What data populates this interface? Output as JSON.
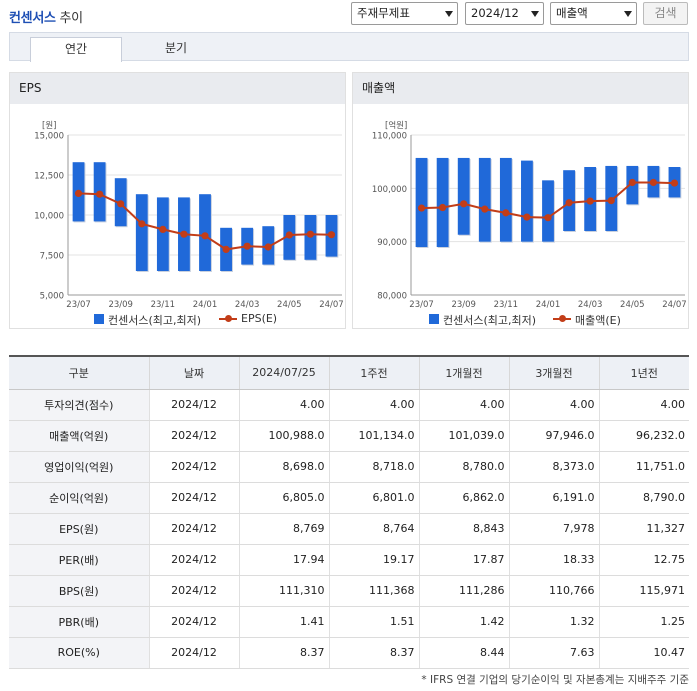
{
  "header": {
    "brand": "컨센서스",
    "title_suffix": "추이",
    "select_type": "주재무제표",
    "select_period": "2024/12",
    "select_metric": "매출액",
    "search_label": "검색"
  },
  "tabs": [
    {
      "label": "연간",
      "active": true
    },
    {
      "label": "분기",
      "active": false
    }
  ],
  "charts": [
    {
      "chart_data": {
        "type": "bar",
        "title": "EPS",
        "unit_label": "[원]",
        "categories": [
          "23/07",
          "23/08",
          "23/09",
          "23/10",
          "23/11",
          "23/12",
          "24/01",
          "24/02",
          "24/03",
          "24/04",
          "24/05",
          "24/06",
          "24/07"
        ],
        "xtick_labels": [
          "23/07",
          "23/09",
          "23/11",
          "24/01",
          "24/03",
          "24/05",
          "24/07"
        ],
        "range_high": [
          13300,
          13300,
          12300,
          11300,
          11100,
          11100,
          11300,
          9200,
          9200,
          9300,
          10000,
          10000,
          10000
        ],
        "range_low": [
          9600,
          9600,
          9300,
          6500,
          6500,
          6500,
          6500,
          6500,
          6900,
          6900,
          7200,
          7200,
          7400
        ],
        "line_values": [
          11350,
          11300,
          10700,
          9450,
          9100,
          8800,
          8700,
          7850,
          8050,
          8000,
          8750,
          8800,
          8769
        ],
        "ylim": [
          5000,
          15000
        ],
        "yticks": [
          5000,
          7500,
          10000,
          12500,
          15000
        ],
        "ytick_labels": [
          "5,000",
          "7,500",
          "10,000",
          "12,500",
          "15,000"
        ],
        "legend_bar": "컨센서스(최고,최저)",
        "legend_line": "EPS(E)",
        "bar_color": "#2069d9",
        "line_color": "#c23d18"
      }
    },
    {
      "chart_data": {
        "type": "bar",
        "title": "매출액",
        "unit_label": "[억원]",
        "categories": [
          "23/07",
          "23/08",
          "23/09",
          "23/10",
          "23/11",
          "23/12",
          "24/01",
          "24/02",
          "24/03",
          "24/04",
          "24/05",
          "24/06",
          "24/07"
        ],
        "xtick_labels": [
          "23/07",
          "23/09",
          "23/11",
          "24/01",
          "24/03",
          "24/05",
          "24/07"
        ],
        "range_high": [
          105700,
          105700,
          105700,
          105700,
          105700,
          105200,
          101500,
          103400,
          104000,
          104200,
          104200,
          104200,
          104000
        ],
        "range_low": [
          89000,
          89000,
          91300,
          90000,
          90000,
          90000,
          90000,
          92000,
          92000,
          92000,
          97000,
          98300,
          98300
        ],
        "line_values": [
          96300,
          96400,
          97100,
          96100,
          95400,
          94600,
          94500,
          97300,
          97600,
          97700,
          101100,
          101100,
          100988
        ],
        "ylim": [
          80000,
          110000
        ],
        "yticks": [
          80000,
          90000,
          100000,
          110000
        ],
        "ytick_labels": [
          "80,000",
          "90,000",
          "100,000",
          "110,000"
        ],
        "legend_bar": "컨센서스(최고,최저)",
        "legend_line": "매출액(E)",
        "bar_color": "#2069d9",
        "line_color": "#c23d18"
      }
    }
  ],
  "table": {
    "columns": [
      "구분",
      "날짜",
      "2024/07/25",
      "1주전",
      "1개월전",
      "3개월전",
      "1년전"
    ],
    "rows": [
      [
        "투자의견(점수)",
        "2024/12",
        "4.00",
        "4.00",
        "4.00",
        "4.00",
        "4.00"
      ],
      [
        "매출액(억원)",
        "2024/12",
        "100,988.0",
        "101,134.0",
        "101,039.0",
        "97,946.0",
        "96,232.0"
      ],
      [
        "영업이익(억원)",
        "2024/12",
        "8,698.0",
        "8,718.0",
        "8,780.0",
        "8,373.0",
        "11,751.0"
      ],
      [
        "순이익(억원)",
        "2024/12",
        "6,805.0",
        "6,801.0",
        "6,862.0",
        "6,191.0",
        "8,790.0"
      ],
      [
        "EPS(원)",
        "2024/12",
        "8,769",
        "8,764",
        "8,843",
        "7,978",
        "11,327"
      ],
      [
        "PER(배)",
        "2024/12",
        "17.94",
        "19.17",
        "17.87",
        "18.33",
        "12.75"
      ],
      [
        "BPS(원)",
        "2024/12",
        "111,310",
        "111,368",
        "111,286",
        "110,766",
        "115,971"
      ],
      [
        "PBR(배)",
        "2024/12",
        "1.41",
        "1.51",
        "1.42",
        "1.32",
        "1.25"
      ],
      [
        "ROE(%)",
        "2024/12",
        "8.37",
        "8.37",
        "8.44",
        "7.63",
        "10.47"
      ]
    ]
  },
  "footnote": "* IFRS 연결 기업의 당기순이익 및 자본총계는 지배주주 기준"
}
